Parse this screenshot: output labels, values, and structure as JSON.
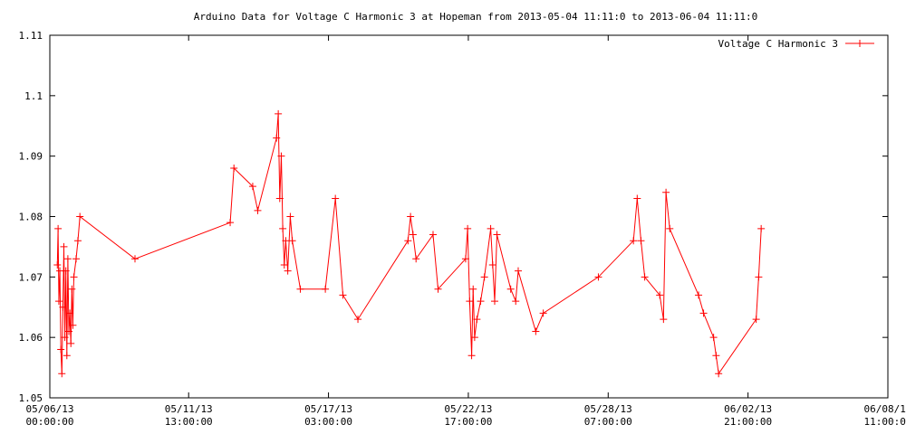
{
  "chart_data": {
    "type": "line",
    "title": "Arduino Data for Voltage C Harmonic 3 at Hopeman from 2013-05-04 11:11:0 to 2013-06-04 11:11:0",
    "xlabel": "",
    "ylabel": "",
    "ylim": [
      1.05,
      1.11
    ],
    "yticks": [
      "1.05",
      "1.06",
      "1.07",
      "1.08",
      "1.09",
      "1.1",
      "1.11"
    ],
    "xlim": [
      0,
      33.4583
    ],
    "xticks": [
      {
        "x": 0,
        "label1": "05/06/13",
        "label2": "00:00:00"
      },
      {
        "x": 5.5417,
        "label1": "05/11/13",
        "label2": "13:00:00"
      },
      {
        "x": 11.125,
        "label1": "05/17/13",
        "label2": "03:00:00"
      },
      {
        "x": 16.7083,
        "label1": "05/22/13",
        "label2": "17:00:00"
      },
      {
        "x": 22.2917,
        "label1": "05/28/13",
        "label2": "07:00:00"
      },
      {
        "x": 27.875,
        "label1": "06/02/13",
        "label2": "21:00:00"
      },
      {
        "x": 33.4583,
        "label1": "06/08/13",
        "label2": "11:00:00"
      }
    ],
    "grid": false,
    "legend_position": "top-right",
    "series": [
      {
        "name": "Voltage C Harmonic 3",
        "color": "#ff0000",
        "marker": "plus",
        "points": [
          [
            0.3,
            1.072
          ],
          [
            0.33,
            1.078
          ],
          [
            0.36,
            1.066
          ],
          [
            0.4,
            1.071
          ],
          [
            0.44,
            1.058
          ],
          [
            0.48,
            1.054
          ],
          [
            0.52,
            1.065
          ],
          [
            0.56,
            1.075
          ],
          [
            0.6,
            1.06
          ],
          [
            0.64,
            1.071
          ],
          [
            0.68,
            1.057
          ],
          [
            0.72,
            1.073
          ],
          [
            0.76,
            1.061
          ],
          [
            0.8,
            1.064
          ],
          [
            0.84,
            1.059
          ],
          [
            0.88,
            1.068
          ],
          [
            0.92,
            1.062
          ],
          [
            0.96,
            1.07
          ],
          [
            1.05,
            1.073
          ],
          [
            1.12,
            1.076
          ],
          [
            1.2,
            1.08
          ],
          [
            3.4,
            1.073
          ],
          [
            7.2,
            1.079
          ],
          [
            7.35,
            1.088
          ],
          [
            8.1,
            1.085
          ],
          [
            8.3,
            1.081
          ],
          [
            9.05,
            1.093
          ],
          [
            9.12,
            1.097
          ],
          [
            9.18,
            1.083
          ],
          [
            9.24,
            1.09
          ],
          [
            9.3,
            1.078
          ],
          [
            9.36,
            1.072
          ],
          [
            9.42,
            1.076
          ],
          [
            9.5,
            1.071
          ],
          [
            9.6,
            1.08
          ],
          [
            9.68,
            1.076
          ],
          [
            10.0,
            1.068
          ],
          [
            11.0,
            1.068
          ],
          [
            11.4,
            1.083
          ],
          [
            11.7,
            1.067
          ],
          [
            12.3,
            1.063
          ],
          [
            14.3,
            1.076
          ],
          [
            14.4,
            1.08
          ],
          [
            14.5,
            1.077
          ],
          [
            14.62,
            1.073
          ],
          [
            15.3,
            1.077
          ],
          [
            15.5,
            1.068
          ],
          [
            16.6,
            1.073
          ],
          [
            16.68,
            1.078
          ],
          [
            16.76,
            1.066
          ],
          [
            16.84,
            1.057
          ],
          [
            16.9,
            1.068
          ],
          [
            16.96,
            1.06
          ],
          [
            17.05,
            1.063
          ],
          [
            17.2,
            1.066
          ],
          [
            17.35,
            1.07
          ],
          [
            17.6,
            1.078
          ],
          [
            17.68,
            1.072
          ],
          [
            17.76,
            1.066
          ],
          [
            17.85,
            1.077
          ],
          [
            18.4,
            1.068
          ],
          [
            18.6,
            1.066
          ],
          [
            18.7,
            1.071
          ],
          [
            19.4,
            1.061
          ],
          [
            19.7,
            1.064
          ],
          [
            21.9,
            1.07
          ],
          [
            23.3,
            1.076
          ],
          [
            23.45,
            1.083
          ],
          [
            23.6,
            1.076
          ],
          [
            23.75,
            1.07
          ],
          [
            24.35,
            1.067
          ],
          [
            24.5,
            1.063
          ],
          [
            24.6,
            1.084
          ],
          [
            24.75,
            1.078
          ],
          [
            25.9,
            1.067
          ],
          [
            26.1,
            1.064
          ],
          [
            26.5,
            1.06
          ],
          [
            26.6,
            1.057
          ],
          [
            26.7,
            1.054
          ],
          [
            28.2,
            1.063
          ],
          [
            28.3,
            1.07
          ],
          [
            28.4,
            1.078
          ]
        ]
      }
    ]
  }
}
